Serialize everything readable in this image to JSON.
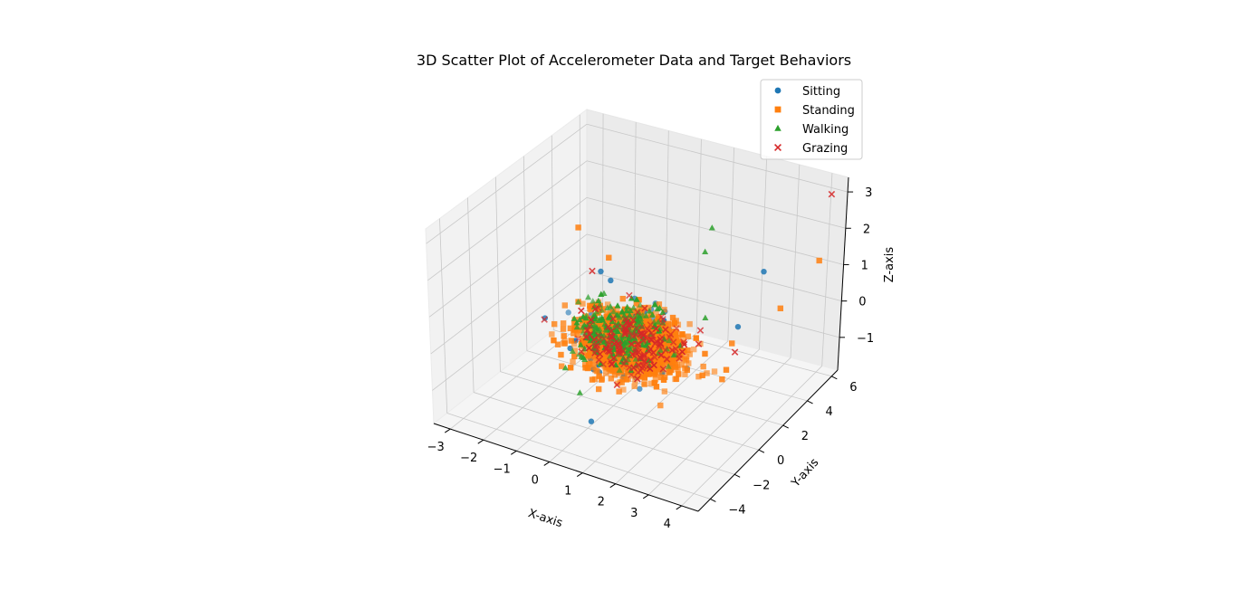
{
  "chart_data": {
    "type": "scatter",
    "title": "3D Scatter Plot of Accelerometer Data and Target Behaviors",
    "xlabel": "X-axis",
    "ylabel": "Y-axis",
    "zlabel": "Z-axis",
    "xlim": [
      -3.5,
      4.5
    ],
    "ylim": [
      -5,
      6.5
    ],
    "zlim": [
      -1.9,
      3.4
    ],
    "xticks": [
      "−3",
      "−2",
      "−1",
      "0",
      "1",
      "2",
      "3",
      "4"
    ],
    "yticks": [
      "−4",
      "−2",
      "0",
      "2",
      "4",
      "6"
    ],
    "zticks": [
      "−1",
      "0",
      "1",
      "2",
      "3"
    ],
    "legend_position": "upper-right",
    "series": [
      {
        "name": "Sitting",
        "marker": "circle",
        "color": "#1f77b4",
        "center": [
          0.3,
          0.2,
          -0.2
        ],
        "spread": [
          0.6,
          0.7,
          0.3
        ],
        "count": 220,
        "outliers": [
          [
            -1.2,
            2.0,
            0.8
          ],
          [
            2.8,
            4.5,
            1.0
          ],
          [
            0.3,
            -2.5,
            -1.5
          ],
          [
            -0.5,
            1.0,
            1.0
          ],
          [
            3.0,
            2.0,
            0.3
          ]
        ]
      },
      {
        "name": "Standing",
        "marker": "square",
        "color": "#ff7f0e",
        "center": [
          0.5,
          0.1,
          -0.2
        ],
        "spread": [
          0.7,
          0.7,
          0.3
        ],
        "count": 1800,
        "outliers": [
          [
            4.0,
            5.8,
            1.2
          ],
          [
            -1.8,
            1.8,
            1.9
          ],
          [
            3.9,
            3.0,
            0.7
          ],
          [
            -1.2,
            2.6,
            1.0
          ],
          [
            3.2,
            1.0,
            0.2
          ]
        ]
      },
      {
        "name": "Walking",
        "marker": "triangle",
        "color": "#2ca02c",
        "center": [
          0.0,
          0.5,
          -0.1
        ],
        "spread": [
          0.6,
          0.7,
          0.35
        ],
        "count": 260,
        "outliers": [
          [
            1.6,
            3.4,
            2.2
          ],
          [
            1.6,
            2.9,
            1.7
          ],
          [
            -1.4,
            -0.2,
            -1.2
          ],
          [
            -0.4,
            -1.6,
            -1.2
          ],
          [
            2.0,
            2.0,
            0.3
          ]
        ]
      },
      {
        "name": "Grazing",
        "marker": "cross",
        "color": "#d62728",
        "center": [
          0.6,
          0.1,
          -0.2
        ],
        "spread": [
          0.7,
          0.7,
          0.3
        ],
        "count": 160,
        "outliers": [
          [
            4.2,
            6.0,
            3.0
          ],
          [
            -1.3,
            1.6,
            0.9
          ],
          [
            3.3,
            1.0,
            0.0
          ]
        ]
      }
    ]
  }
}
